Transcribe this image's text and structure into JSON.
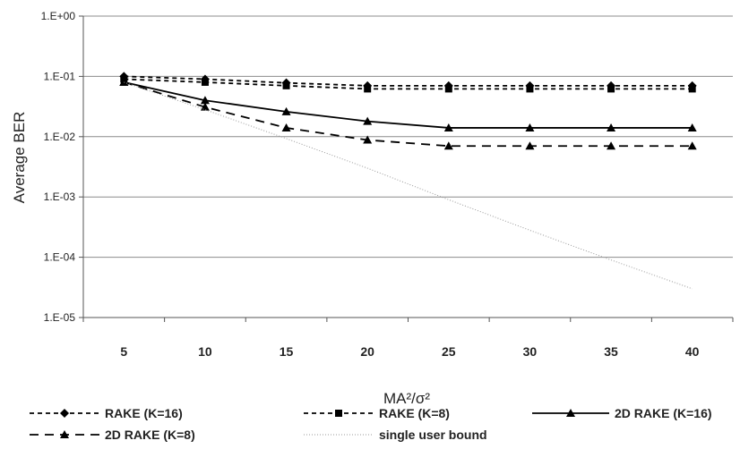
{
  "chart_data": {
    "type": "line",
    "xlabel": "MA²/σ²",
    "ylabel": "Average BER",
    "x": [
      5,
      10,
      15,
      20,
      25,
      30,
      35,
      40
    ],
    "xticks": [
      "5",
      "10",
      "15",
      "20",
      "25",
      "30",
      "35",
      "40"
    ],
    "yscale": "log",
    "ylim": [
      1e-05,
      1
    ],
    "yticks": [
      "1.E+00",
      "1.E-01",
      "1.E-02",
      "1.E-03",
      "1.E-04",
      "1.E-05"
    ],
    "grid": "horizontal",
    "legend_position": "bottom",
    "series": [
      {
        "name": "RAKE (K=16)",
        "style": "dash",
        "marker": "diamond",
        "color": "#000000",
        "values": [
          0.1,
          0.09,
          0.078,
          0.07,
          0.07,
          0.07,
          0.07,
          0.07
        ]
      },
      {
        "name": "RAKE (K=8)",
        "style": "dash",
        "marker": "square",
        "color": "#000000",
        "values": [
          0.09,
          0.08,
          0.07,
          0.062,
          0.062,
          0.062,
          0.062,
          0.062
        ]
      },
      {
        "name": "2D RAKE (K=16)",
        "style": "solid",
        "marker": "triangle",
        "color": "#000000",
        "values": [
          0.08,
          0.04,
          0.026,
          0.018,
          0.014,
          0.014,
          0.014,
          0.014
        ]
      },
      {
        "name": "2D RAKE (K=8)",
        "style": "longdash",
        "marker": "triangle",
        "color": "#000000",
        "values": [
          0.08,
          0.031,
          0.014,
          0.0088,
          0.007,
          0.007,
          0.007,
          0.007
        ]
      },
      {
        "name": "single user bound",
        "style": "dotted",
        "marker": "none",
        "color": "#999999",
        "values": [
          0.08,
          0.028,
          0.0093,
          0.003,
          0.0009,
          0.00028,
          9e-05,
          3e-05
        ]
      }
    ]
  }
}
